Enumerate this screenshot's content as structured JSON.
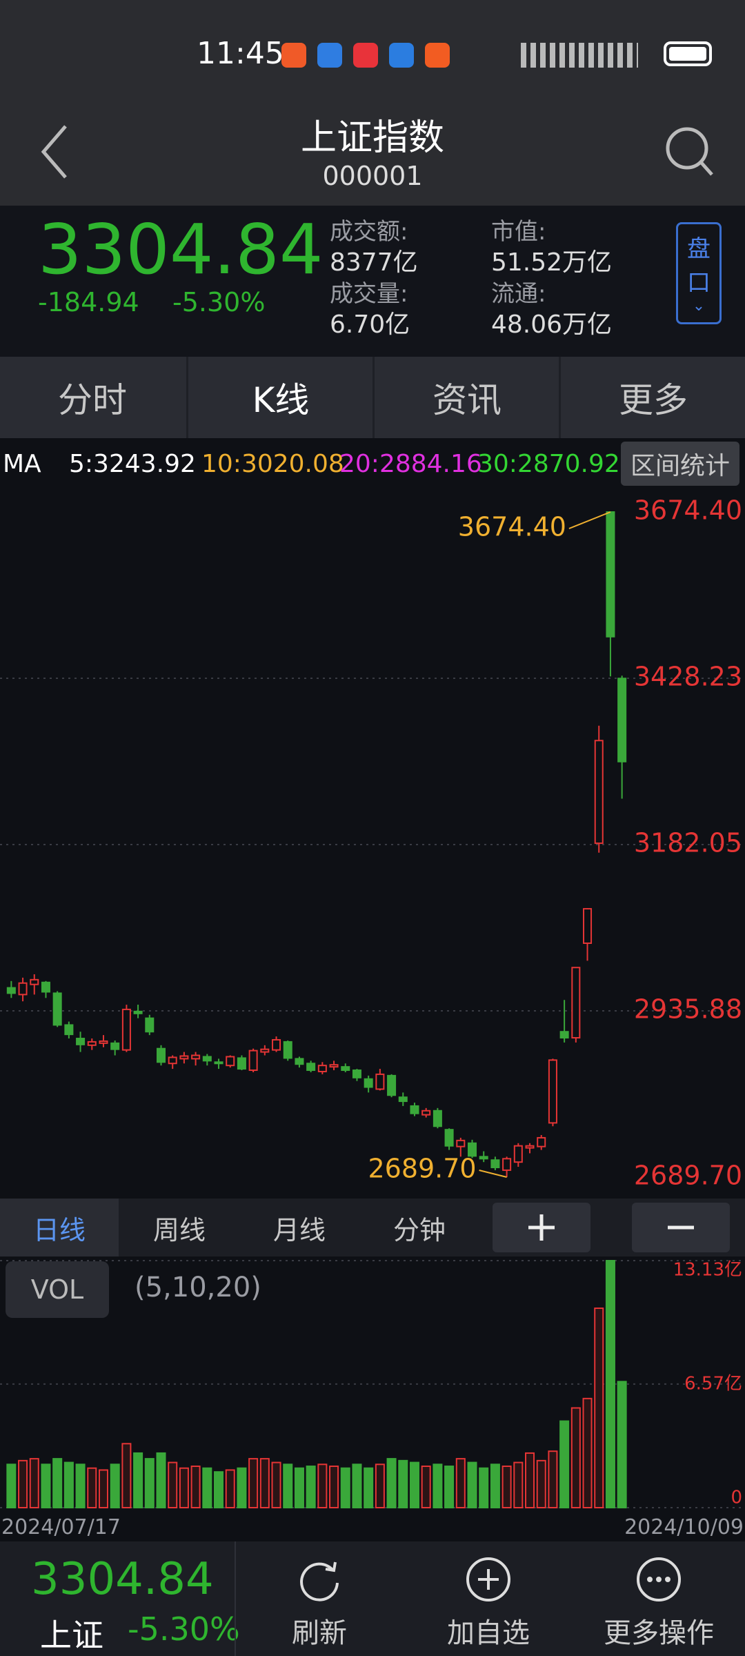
{
  "status_bar": {
    "time": "11:45"
  },
  "header": {
    "title": "上证指数",
    "code": "000001"
  },
  "quote": {
    "price": "3304.84",
    "change": "-184.94",
    "change_pct": "-5.30%",
    "stats": [
      {
        "label": "成交额:",
        "value": "8377亿"
      },
      {
        "label": "成交量:",
        "value": "6.70亿"
      },
      {
        "label": "市值:",
        "value": "51.52万亿"
      },
      {
        "label": "流通:",
        "value": "48.06万亿"
      }
    ],
    "side_button": [
      "盘",
      "口"
    ]
  },
  "tabs": [
    "分时",
    "K线",
    "资讯",
    "更多"
  ],
  "ma_bar": {
    "label": "MA",
    "items": [
      {
        "text": "5:3243.92",
        "color": "#ffffff"
      },
      {
        "text": "10:3020.08",
        "color": "#f0b030"
      },
      {
        "text": "20:2884.16",
        "color": "#e030e0"
      },
      {
        "text": "30:2870.92",
        "color": "#33d633"
      }
    ],
    "button": "区间统计"
  },
  "period_tabs": [
    "日线",
    "周线",
    "月线",
    "分钟"
  ],
  "vol_bar": {
    "label": "VOL",
    "params": "(5,10,20)"
  },
  "date_labels": [
    "2024/07/17",
    "2024/10/09"
  ],
  "bottom_bar": {
    "price": "3304.84",
    "name": "上证",
    "change_pct": "-5.30%",
    "actions": [
      "刷新",
      "加自选",
      "更多操作"
    ]
  },
  "chart_data": [
    {
      "type": "candlestick",
      "up_color": "#e53535",
      "down_color": "#3aa83a",
      "grid": true,
      "ylim": [
        2689.7,
        3674.4
      ],
      "yticks": [
        {
          "value": 2689.7,
          "label": "2689.70"
        },
        {
          "value": 2935.88,
          "label": "2935.88"
        },
        {
          "value": 3182.05,
          "label": "3182.05"
        },
        {
          "value": 3428.23,
          "label": "3428.23"
        },
        {
          "value": 3674.4,
          "label": "3674.40"
        }
      ],
      "annotations": [
        {
          "text": "3674.40",
          "index": 52
        },
        {
          "text": "2689.70",
          "index": 43
        }
      ],
      "open": [
        2970,
        2960,
        2975,
        2978,
        2962,
        2915,
        2895,
        2885,
        2888,
        2888,
        2878,
        2935,
        2925,
        2880,
        2858,
        2865,
        2865,
        2868,
        2860,
        2855,
        2866,
        2848,
        2875,
        2878,
        2890,
        2865,
        2858,
        2846,
        2853,
        2853,
        2848,
        2835,
        2820,
        2840,
        2808,
        2795,
        2782,
        2788,
        2760,
        2735,
        2740,
        2720,
        2715,
        2700,
        2712,
        2733,
        2735,
        2770,
        2905,
        2896,
        3036,
        3184,
        3674.4,
        3428
      ],
      "high": [
        2980,
        2985,
        2990,
        2980,
        2965,
        2920,
        2905,
        2895,
        2900,
        2892,
        2945,
        2945,
        2930,
        2885,
        2870,
        2875,
        2875,
        2872,
        2865,
        2870,
        2870,
        2880,
        2885,
        2898,
        2892,
        2868,
        2862,
        2860,
        2862,
        2858,
        2850,
        2840,
        2850,
        2842,
        2815,
        2800,
        2792,
        2792,
        2762,
        2748,
        2745,
        2728,
        2720,
        2720,
        2740,
        2740,
        2752,
        2865,
        2952,
        3000,
        3088,
        3358,
        3674.4,
        3432
      ],
      "low": [
        2955,
        2950,
        2960,
        2955,
        2912,
        2895,
        2875,
        2878,
        2882,
        2870,
        2875,
        2925,
        2900,
        2855,
        2850,
        2858,
        2855,
        2855,
        2850,
        2852,
        2848,
        2845,
        2870,
        2875,
        2862,
        2852,
        2845,
        2842,
        2848,
        2845,
        2832,
        2815,
        2818,
        2808,
        2795,
        2780,
        2778,
        2762,
        2730,
        2720,
        2718,
        2712,
        2700,
        2689.7,
        2705,
        2725,
        2730,
        2765,
        2889,
        2889,
        3010,
        3170,
        3431,
        3250
      ],
      "close": [
        2962,
        2977,
        2982,
        2964,
        2915,
        2901,
        2886,
        2890,
        2891,
        2879,
        2938,
        2932,
        2905,
        2860,
        2867,
        2869,
        2870,
        2862,
        2858,
        2868,
        2850,
        2877,
        2879,
        2893,
        2866,
        2857,
        2848,
        2855,
        2856,
        2848,
        2837,
        2823,
        2842,
        2811,
        2802,
        2784,
        2788,
        2765,
        2736,
        2744,
        2721,
        2717,
        2704,
        2717,
        2736,
        2736,
        2748,
        2863,
        2896,
        3000,
        3087,
        3336,
        3489.78,
        3304.84
      ]
    },
    {
      "type": "bar",
      "up_color": "#e53535",
      "down_color": "#3aa83a",
      "ylim": [
        0,
        13.13
      ],
      "yticks": [
        0,
        {
          "value": 6.57,
          "label": "6.57亿"
        },
        {
          "value": 13.13,
          "label": "13.13亿"
        }
      ],
      "values": [
        2.3,
        2.5,
        2.6,
        2.3,
        2.6,
        2.4,
        2.3,
        2.1,
        2.0,
        2.3,
        3.4,
        2.9,
        2.6,
        2.9,
        2.4,
        2.1,
        2.2,
        2.1,
        1.9,
        2.0,
        2.1,
        2.6,
        2.6,
        2.4,
        2.3,
        2.1,
        2.2,
        2.3,
        2.2,
        2.1,
        2.3,
        2.1,
        2.3,
        2.6,
        2.5,
        2.4,
        2.2,
        2.3,
        2.2,
        2.6,
        2.4,
        2.1,
        2.3,
        2.2,
        2.4,
        2.9,
        2.5,
        3.0,
        4.6,
        5.3,
        5.8,
        10.6,
        13.13,
        6.7
      ]
    }
  ]
}
